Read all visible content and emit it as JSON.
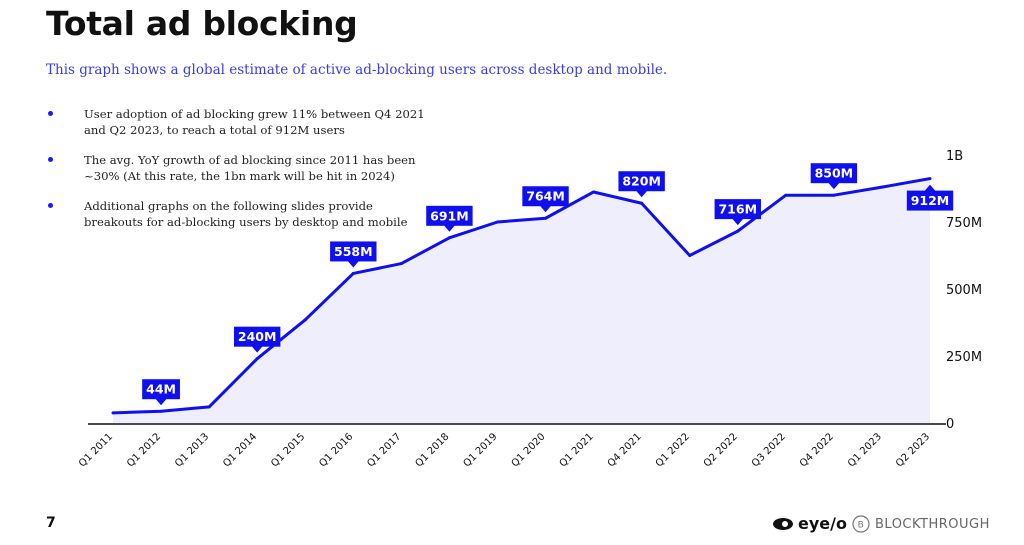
{
  "title": "Total ad blocking",
  "subtitle": "This graph shows a global estimate of active ad-blocking users across desktop and mobile.",
  "bullets": [
    "User adoption of ad blocking grew 11% between Q4 2021 and Q2 2023, to reach a total of 912M users",
    "The avg. YoY growth of ad blocking since 2011 has been ~30% (At this rate, the 1bn mark will be hit in 2024)",
    "Additional graphs on the following slides provide breakouts for ad-blocking users by desktop and mobile"
  ],
  "page_number": "7",
  "logos": {
    "eyeo": "eye/o",
    "blockthrough": "BLOCKTHROUGH"
  },
  "chart_data": {
    "type": "area",
    "categories": [
      "Q1 2011",
      "Q1 2012",
      "Q1 2013",
      "Q1 2014",
      "Q1 2015",
      "Q1 2016",
      "Q1 2017",
      "Q1 2018",
      "Q1 2019",
      "Q1 2020",
      "Q1 2021",
      "Q4 2021",
      "Q1 2022",
      "Q2 2022",
      "Q3 2022",
      "Q4 2022",
      "Q1 2023",
      "Q2 2023"
    ],
    "values": [
      38,
      44,
      60,
      240,
      385,
      558,
      595,
      691,
      750,
      764,
      862,
      820,
      625,
      716,
      850,
      850,
      880,
      912
    ],
    "data_labels": [
      {
        "index": 1,
        "text": "44M"
      },
      {
        "index": 3,
        "text": "240M"
      },
      {
        "index": 5,
        "text": "558M"
      },
      {
        "index": 7,
        "text": "691M"
      },
      {
        "index": 9,
        "text": "764M"
      },
      {
        "index": 11,
        "text": "820M"
      },
      {
        "index": 13,
        "text": "716M"
      },
      {
        "index": 15,
        "text": "850M"
      },
      {
        "index": 17,
        "text": "912M"
      }
    ],
    "y_ticks": [
      {
        "value": 0,
        "label": "0"
      },
      {
        "value": 250,
        "label": "250M"
      },
      {
        "value": 500,
        "label": "500M"
      },
      {
        "value": 750,
        "label": "750M"
      },
      {
        "value": 1000,
        "label": "1B"
      }
    ],
    "ylim": [
      0,
      1000
    ],
    "grid": false,
    "legend": "none",
    "colors": {
      "line": "#1010ee",
      "fill": "#eeeefc",
      "label_bg": "#1010ee",
      "label_text": "#ffffff"
    }
  }
}
